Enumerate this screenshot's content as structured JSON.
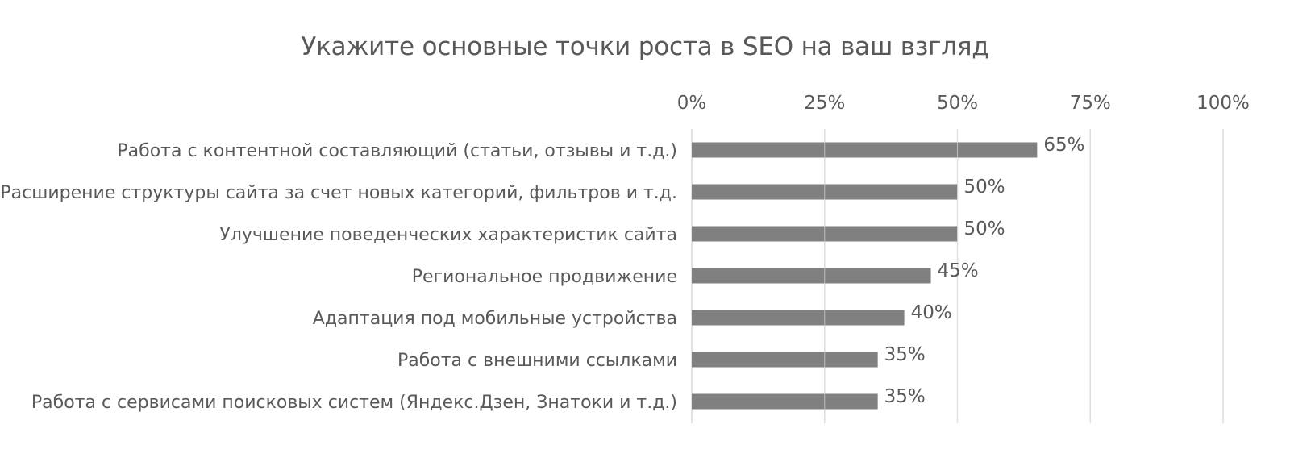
{
  "chart_data": {
    "type": "bar",
    "orientation": "horizontal",
    "title": "Укажите основные точки роста в SEO на ваш взгляд",
    "categories": [
      "Работа с контентной составляющий (статьи, отзывы и т.д.)",
      "Расширение структуры сайта за счет новых категорий, фильтров и т.д.",
      "Улучшение поведенческих характеристик сайта",
      "Региональное продвижение",
      "Адаптация под мобильные устройства",
      "Работа с внешними ссылками",
      "Работа с сервисами поисковых систем (Яндекс.Дзен, Знатоки и т.д.)"
    ],
    "values": [
      65,
      50,
      50,
      45,
      40,
      35,
      35
    ],
    "value_labels": [
      "65%",
      "50%",
      "50%",
      "45%",
      "40%",
      "35%",
      "35%"
    ],
    "xlim": [
      0,
      100
    ],
    "x_ticks": [
      0,
      25,
      50,
      75,
      100
    ],
    "x_tick_labels": [
      "0%",
      "25%",
      "50%",
      "75%",
      "100%"
    ],
    "x_axis_position": "top",
    "grid": true,
    "legend": "none",
    "bar_color": "#808080",
    "grid_color": "#d9d9d9",
    "text_color": "#595959"
  }
}
